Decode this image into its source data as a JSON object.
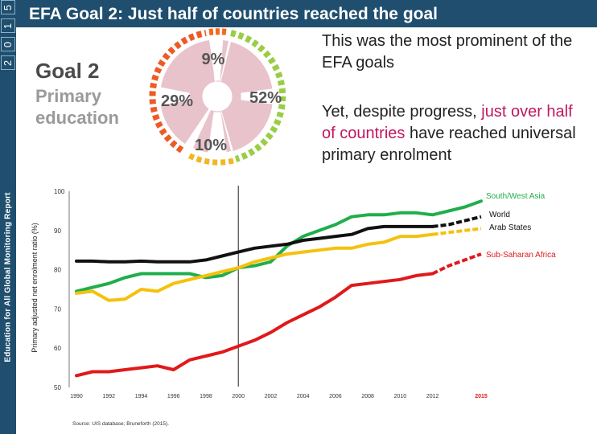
{
  "header": {
    "title": "EFA Goal 2: Just half of countries reached the goal",
    "report_name": "Education for All Global Monitoring Report",
    "year_digits": [
      "2",
      "0",
      "1",
      "5"
    ]
  },
  "graphic": {
    "goal_label": "Goal 2",
    "goal_subtitle_line1": "Primary",
    "goal_subtitle_line2": "education",
    "pie_labels": [
      "9%",
      "52%",
      "10%",
      "29%"
    ],
    "colors": {
      "pie_fill": "#e8c3cc",
      "reached": "#9acd46",
      "close": "#f2b623",
      "far": "#f26a1f",
      "very_far": "#ee5a24"
    }
  },
  "notes": {
    "note1": "This was the most prominent of the EFA goals",
    "note2_before": "Yet, despite progress, ",
    "note2_highlight": "just over half of countries",
    "note2_after": " have reached universal primary enrolment",
    "highlight_color": "#c0185f"
  },
  "chart_data": {
    "type": "line",
    "title": "",
    "xlabel": "",
    "ylabel": "Primary adjusted net enrolment ratio (%)",
    "xlim": [
      1990,
      2015
    ],
    "ylim": [
      50,
      100
    ],
    "x_ticks": [
      1990,
      1992,
      1994,
      1996,
      1998,
      2000,
      2002,
      2004,
      2006,
      2008,
      2010,
      2012,
      2015
    ],
    "y_ticks": [
      50,
      60,
      70,
      80,
      90,
      100
    ],
    "reference_year": 2000,
    "source": "Source: UIS database; Bruneforth (2015).",
    "series": [
      {
        "name": "South/West Asia",
        "color": "#1fae4b",
        "x": [
          1990,
          1991,
          1992,
          1993,
          1994,
          1995,
          1996,
          1997,
          1998,
          1999,
          2000,
          2001,
          2002,
          2003,
          2004,
          2005,
          2006,
          2007,
          2008,
          2009,
          2010,
          2011,
          2012,
          2013,
          2014,
          2015
        ],
        "y": [
          74.5,
          75.5,
          76.5,
          78,
          79,
          79,
          79,
          79,
          78,
          78.5,
          80.5,
          81,
          82,
          86,
          88.5,
          90,
          91.5,
          93.5,
          94,
          94,
          94.5,
          94.5,
          94,
          95,
          96,
          97.5
        ]
      },
      {
        "name": "World",
        "color": "#111111",
        "dashed_from": 2012,
        "x": [
          1990,
          1991,
          1992,
          1993,
          1994,
          1995,
          1996,
          1997,
          1998,
          1999,
          2000,
          2001,
          2002,
          2003,
          2004,
          2005,
          2006,
          2007,
          2008,
          2009,
          2010,
          2011,
          2012,
          2013,
          2014,
          2015
        ],
        "y": [
          82.2,
          82.2,
          82,
          82,
          82.2,
          82,
          82,
          82,
          82.5,
          83.5,
          84.5,
          85.5,
          86,
          86.5,
          87.5,
          88,
          88.5,
          89,
          90.5,
          91,
          91,
          91,
          91,
          91.5,
          92.5,
          93.5
        ]
      },
      {
        "name": "Arab States",
        "color": "#f5c10f",
        "dashed_from": 2012,
        "x": [
          1990,
          1991,
          1992,
          1993,
          1994,
          1995,
          1996,
          1997,
          1998,
          1999,
          2000,
          2001,
          2002,
          2003,
          2004,
          2005,
          2006,
          2007,
          2008,
          2009,
          2010,
          2011,
          2012,
          2013,
          2014,
          2015
        ],
        "y": [
          74,
          74.5,
          72.2,
          72.5,
          75,
          74.5,
          76.5,
          77.5,
          78.5,
          79.5,
          80.5,
          82,
          83,
          84,
          84.5,
          85,
          85.5,
          85.5,
          86.5,
          87,
          88.5,
          88.5,
          89,
          89.5,
          90,
          90.5
        ]
      },
      {
        "name": "Sub-Saharan Africa",
        "color": "#e0191b",
        "dashed_from": 2012,
        "x": [
          1990,
          1991,
          1992,
          1993,
          1994,
          1995,
          1996,
          1997,
          1998,
          1999,
          2000,
          2001,
          2002,
          2003,
          2004,
          2005,
          2006,
          2007,
          2008,
          2009,
          2010,
          2011,
          2012,
          2013,
          2014,
          2015
        ],
        "y": [
          53,
          54,
          54,
          54.5,
          55,
          55.5,
          54.5,
          57,
          58,
          59,
          60.5,
          62,
          64,
          66.5,
          68.5,
          70.5,
          73,
          76,
          76.5,
          77,
          77.5,
          78.5,
          79,
          81,
          82.5,
          84
        ]
      }
    ]
  }
}
